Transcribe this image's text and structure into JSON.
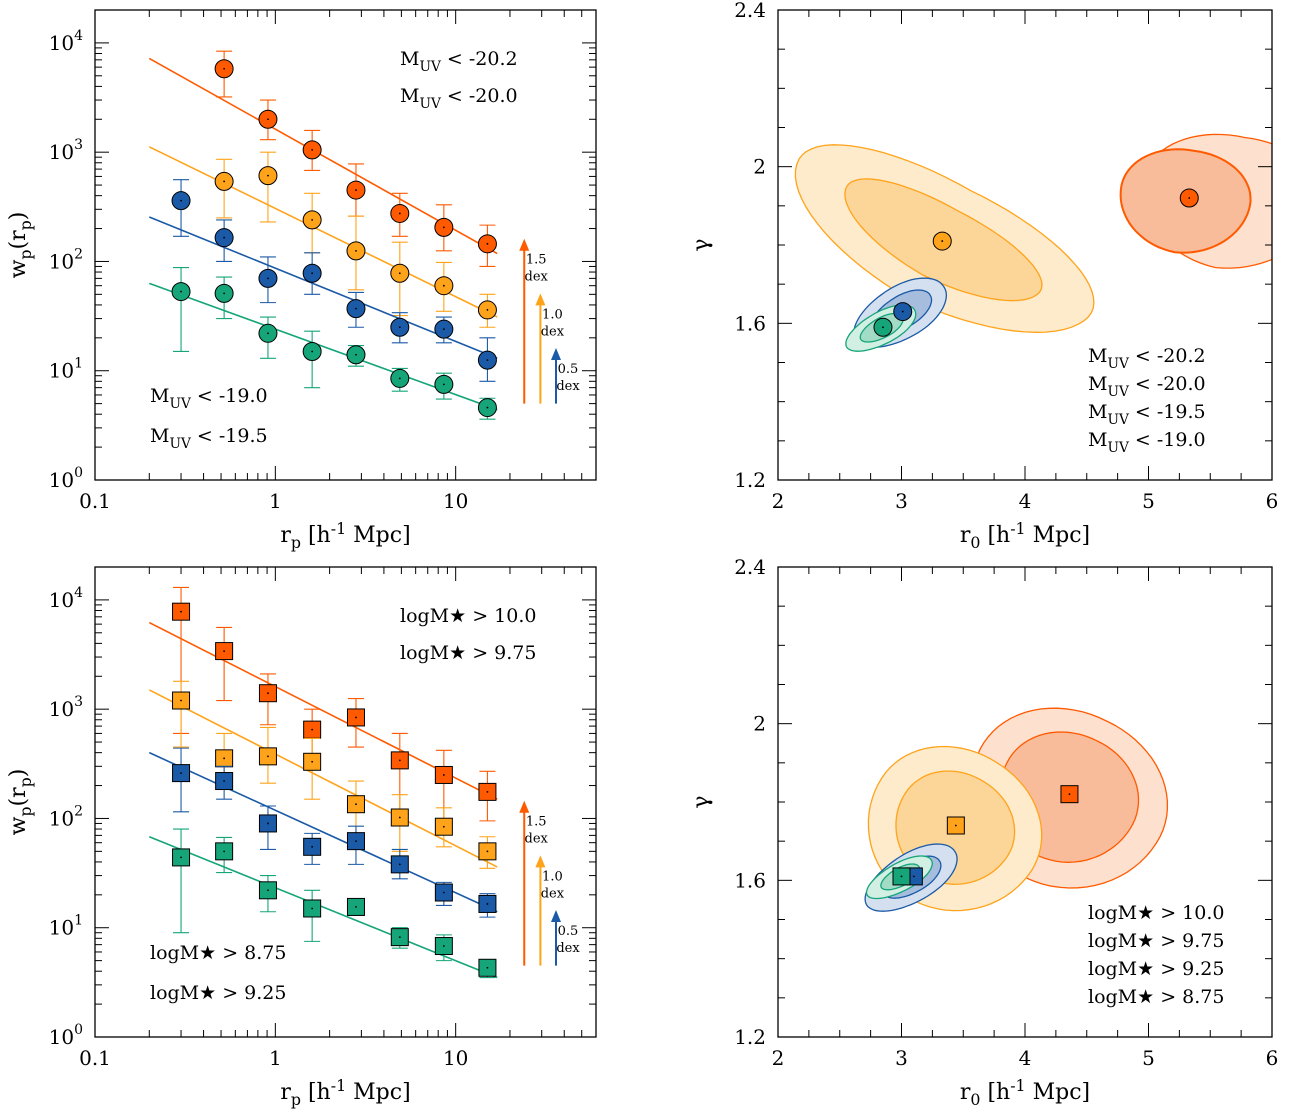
{
  "colors": {
    "bright": "#ff5a00",
    "faint": "#ffa31a",
    "blue": "#1a5aa6",
    "green": "#15a579"
  },
  "chart_data": [
    {
      "id": "wp-muv",
      "type": "scatter",
      "xscale": "log",
      "yscale": "log",
      "xlim": [
        0.1,
        60
      ],
      "ylim": [
        1,
        20000
      ],
      "xlabel": "r_p [h^-1 Mpc]",
      "ylabel": "w_p(r_p)",
      "xticks": [
        "0.1",
        "1",
        "10"
      ],
      "yticks": [
        "10^0",
        "10^1",
        "10^2",
        "10^3",
        "10^4"
      ],
      "marker": "circle",
      "series": [
        {
          "name": "M_UV < -20.2",
          "color": "bright",
          "points": [
            [
              0.52,
              5800,
              3200,
              8400
            ],
            [
              0.91,
              2000,
              1300,
              3000
            ],
            [
              1.6,
              1050,
              680,
              1580
            ],
            [
              2.8,
              450,
              260,
              780
            ],
            [
              4.9,
              275,
              170,
              420
            ],
            [
              8.6,
              205,
              125,
              330
            ],
            [
              15,
              145,
              90,
              215
            ]
          ],
          "fit": {
            "x0": 0.2,
            "x1": 17,
            "y0": 7200,
            "y1": 118
          }
        },
        {
          "name": "M_UV < -20.0",
          "color": "faint",
          "points": [
            [
              0.52,
              540,
              250,
              860
            ],
            [
              0.91,
              610,
              230,
              1000
            ],
            [
              1.6,
              240,
              120,
              420
            ],
            [
              2.8,
              125,
              55,
              260
            ],
            [
              4.9,
              78,
              32,
              150
            ],
            [
              8.6,
              60,
              35,
              98
            ],
            [
              15,
              36,
              25,
              50
            ]
          ],
          "fit": {
            "x0": 0.2,
            "x1": 17,
            "y0": 1120,
            "y1": 31
          }
        },
        {
          "name": "M_UV < -19.5",
          "color": "blue",
          "points": [
            [
              0.3,
              360,
              170,
              560
            ],
            [
              0.52,
              165,
              100,
              240
            ],
            [
              0.91,
              70,
              42,
              110
            ],
            [
              1.6,
              78,
              50,
              120
            ],
            [
              2.8,
              37,
              25,
              52
            ],
            [
              4.9,
              25,
              18,
              34
            ],
            [
              8.6,
              24,
              18,
              31
            ],
            [
              15,
              12.5,
              8,
              20
            ]
          ],
          "fit": {
            "x0": 0.2,
            "x1": 17,
            "y0": 255,
            "y1": 13
          }
        },
        {
          "name": "M_UV < -19.0",
          "color": "green",
          "points": [
            [
              0.3,
              53,
              15,
              88
            ],
            [
              0.52,
              51,
              30,
              72
            ],
            [
              0.91,
              22,
              13,
              31
            ],
            [
              1.6,
              15,
              7,
              23
            ],
            [
              2.8,
              14,
              11,
              17
            ],
            [
              4.9,
              8.5,
              6.5,
              10.5
            ],
            [
              8.6,
              7.5,
              5.5,
              9.5
            ],
            [
              15,
              4.6,
              3.6,
              5.6
            ]
          ],
          "fit": {
            "x0": 0.2,
            "x1": 17,
            "y0": 63,
            "y1": 4.4
          }
        }
      ],
      "legend": [
        "M_UV < -20.2",
        "M_UV < -20.0",
        "M_UV < -19.0",
        "M_UV < -19.5"
      ],
      "arrows": [
        {
          "text": [
            "1.5",
            "dex"
          ],
          "color": "bright",
          "x": 24,
          "y0": 5,
          "dex": 1.5
        },
        {
          "text": [
            "1.0",
            "dex"
          ],
          "color": "faint",
          "x": 29.5,
          "y0": 5,
          "dex": 1.0
        },
        {
          "text": [
            "0.5",
            "dex"
          ],
          "color": "blue",
          "x": 36,
          "y0": 5,
          "dex": 0.5
        }
      ]
    },
    {
      "id": "contour-muv",
      "type": "scatter",
      "xlim": [
        2,
        6
      ],
      "ylim": [
        1.2,
        2.4
      ],
      "xlabel": "r_0 [h^-1 Mpc]",
      "ylabel": "γ",
      "xticks": [
        "2",
        "3",
        "4",
        "5",
        "6"
      ],
      "yticks": [
        "1.2",
        "1.6",
        "2",
        "2.4"
      ],
      "marker": "circle",
      "points": [
        {
          "series": "M_UV < -20.2",
          "color": "bright",
          "x": 5.33,
          "y": 1.92
        },
        {
          "series": "M_UV < -20.0",
          "color": "faint",
          "x": 3.33,
          "y": 1.81
        },
        {
          "series": "M_UV < -19.5",
          "color": "blue",
          "x": 3.01,
          "y": 1.63
        },
        {
          "series": "M_UV < -19.0",
          "color": "green",
          "x": 2.85,
          "y": 1.59
        }
      ],
      "legend": [
        "M_UV < -20.2",
        "M_UV < -20.0",
        "M_UV < -19.5",
        "M_UV < -19.0"
      ]
    },
    {
      "id": "wp-mstar",
      "type": "scatter",
      "xscale": "log",
      "yscale": "log",
      "xlim": [
        0.1,
        60
      ],
      "ylim": [
        1,
        20000
      ],
      "xlabel": "r_p [h^-1 Mpc]",
      "ylabel": "w_p(r_p)",
      "xticks": [
        "0.1",
        "1",
        "10"
      ],
      "yticks": [
        "10^0",
        "10^1",
        "10^2",
        "10^3",
        "10^4"
      ],
      "marker": "square",
      "series": [
        {
          "name": "logM★ > 10.0",
          "color": "bright",
          "points": [
            [
              0.3,
              7800,
              600,
              13000
            ],
            [
              0.52,
              3400,
              1200,
              5600
            ],
            [
              0.91,
              1400,
              720,
              2100
            ],
            [
              1.6,
              650,
              300,
              1000
            ],
            [
              2.8,
              840,
              450,
              1250
            ],
            [
              4.9,
              340,
              100,
              600
            ],
            [
              8.6,
              250,
              90,
              420
            ],
            [
              15,
              175,
              95,
              270
            ]
          ],
          "fit": {
            "x0": 0.2,
            "x1": 17,
            "y0": 6200,
            "y1": 150
          }
        },
        {
          "name": "logM★ > 9.75",
          "color": "faint",
          "points": [
            [
              0.3,
              1200,
              450,
              1800
            ],
            [
              0.52,
              355,
              200,
              600
            ],
            [
              0.91,
              370,
              210,
              680
            ],
            [
              1.6,
              330,
              150,
              540
            ],
            [
              2.8,
              135,
              60,
              220
            ],
            [
              4.9,
              102,
              50,
              165
            ],
            [
              8.6,
              84,
              55,
              125
            ],
            [
              15,
              50,
              35,
              68
            ]
          ],
          "fit": {
            "x0": 0.2,
            "x1": 17,
            "y0": 1500,
            "y1": 36
          }
        },
        {
          "name": "logM★ > 9.25",
          "color": "blue",
          "points": [
            [
              0.3,
              260,
              115,
              440
            ],
            [
              0.52,
              220,
              150,
              300
            ],
            [
              0.91,
              90,
              52,
              130
            ],
            [
              1.6,
              55,
              38,
              73
            ],
            [
              2.8,
              62,
              38,
              85
            ],
            [
              4.9,
              38,
              28,
              52
            ],
            [
              8.6,
              21,
              16,
              26
            ],
            [
              15,
              16.5,
              12.5,
              20.5
            ]
          ],
          "fit": {
            "x0": 0.2,
            "x1": 17,
            "y0": 400,
            "y1": 14
          }
        },
        {
          "name": "logM★ > 8.75",
          "color": "green",
          "points": [
            [
              0.3,
              44,
              9,
              80
            ],
            [
              0.52,
              50,
              32,
              67
            ],
            [
              0.91,
              22,
              14,
              30
            ],
            [
              1.6,
              15,
              7.5,
              22
            ],
            [
              2.8,
              15.5,
              13,
              18
            ],
            [
              4.9,
              8.2,
              6.5,
              10
            ],
            [
              8.6,
              6.8,
              5,
              8.6
            ],
            [
              15,
              4.3,
              3.5,
              5.1
            ]
          ],
          "fit": {
            "x0": 0.2,
            "x1": 17,
            "y0": 68,
            "y1": 3.5
          }
        }
      ],
      "legend": [
        "logM★ > 10.0",
        "logM★ > 9.75",
        "logM★ > 8.75",
        "logM★ > 9.25"
      ],
      "arrows": [
        {
          "text": [
            "1.5",
            "dex"
          ],
          "color": "bright",
          "x": 24,
          "y0": 4.5,
          "dex": 1.5
        },
        {
          "text": [
            "1.0",
            "dex"
          ],
          "color": "faint",
          "x": 29.5,
          "y0": 4.5,
          "dex": 1.0
        },
        {
          "text": [
            "0.5",
            "dex"
          ],
          "color": "blue",
          "x": 36,
          "y0": 4.5,
          "dex": 0.5
        }
      ]
    },
    {
      "id": "contour-mstar",
      "type": "scatter",
      "xlim": [
        2,
        6
      ],
      "ylim": [
        1.2,
        2.4
      ],
      "xlabel": "r_0 [h^-1 Mpc]",
      "ylabel": "γ",
      "xticks": [
        "2",
        "3",
        "4",
        "5",
        "6"
      ],
      "yticks": [
        "1.2",
        "1.6",
        "2",
        "2.4"
      ],
      "marker": "square",
      "points": [
        {
          "series": "logM★ > 10.0",
          "color": "bright",
          "x": 4.36,
          "y": 1.82
        },
        {
          "series": "logM★ > 9.75",
          "color": "faint",
          "x": 3.44,
          "y": 1.74
        },
        {
          "series": "logM★ > 9.25",
          "color": "blue",
          "x": 3.1,
          "y": 1.61
        },
        {
          "series": "logM★ > 8.75",
          "color": "green",
          "x": 3.0,
          "y": 1.61
        }
      ],
      "legend": [
        "logM★ > 10.0",
        "logM★ > 9.75",
        "logM★ > 9.25",
        "logM★ > 8.75"
      ]
    }
  ]
}
